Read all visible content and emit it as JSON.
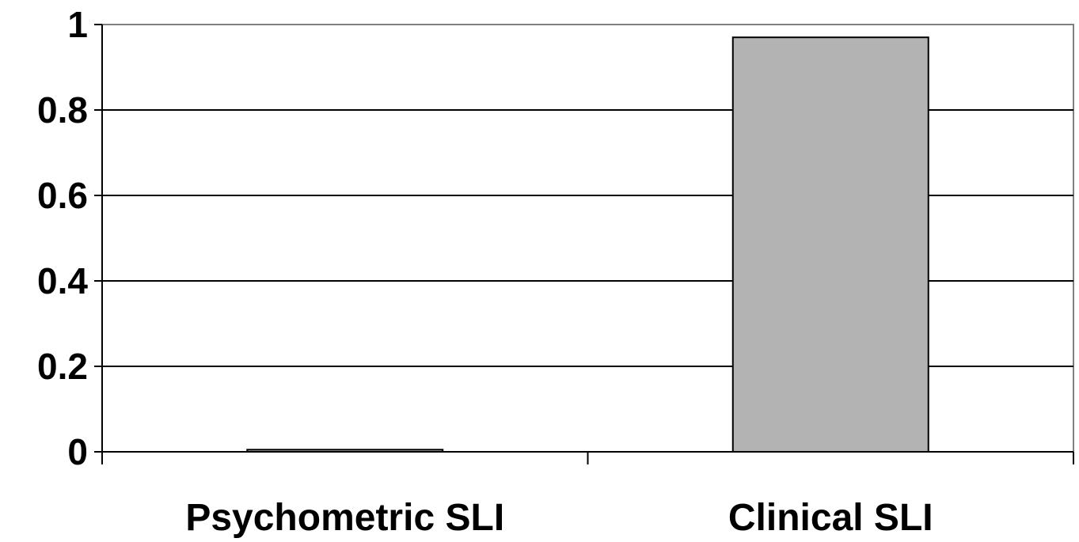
{
  "chart_data": {
    "type": "bar",
    "categories": [
      "Psychometric SLI",
      "Clinical SLI"
    ],
    "values": [
      0.005,
      0.97
    ],
    "title": "",
    "xlabel": "",
    "ylabel": "",
    "ylim": [
      0,
      1
    ],
    "yticks": [
      0,
      0.2,
      0.4,
      0.6,
      0.8,
      1
    ],
    "ytick_labels": [
      "0",
      "0.2",
      "0.4",
      "0.6",
      "0.8",
      "1"
    ],
    "grid": true,
    "legend": "none",
    "colors": {
      "bar_fill": "#b3b3b3",
      "bar_stroke": "#000000",
      "gridline": "#000000",
      "axis": "#000000",
      "plot_border": "#808080",
      "background": "#ffffff"
    }
  }
}
